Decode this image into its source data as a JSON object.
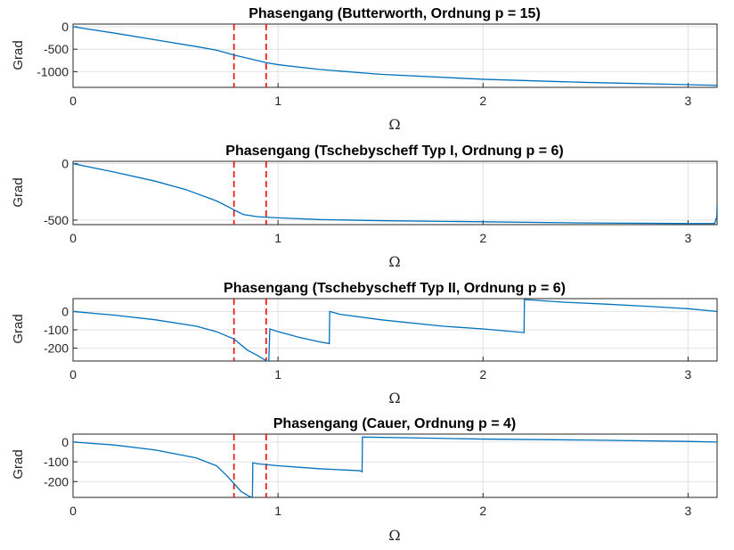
{
  "chart_data": [
    {
      "type": "line",
      "title": "Phasengang (Butterworth, Ordnung p = 15)",
      "xlabel": "Ω",
      "ylabel": "Grad",
      "xlim": [
        0,
        3.1416
      ],
      "ylim": [
        -1350,
        60
      ],
      "xticks": [
        0,
        1,
        2,
        3
      ],
      "xtick_labels": [
        "0",
        "1",
        "2",
        "3"
      ],
      "yticks": [
        0,
        -500,
        -1000
      ],
      "ytick_labels": [
        "0",
        "-500",
        "-1000"
      ],
      "grid": true,
      "line_color": "#0072BD",
      "markers": [
        0.785,
        0.942
      ],
      "marker_color": "#FF0000",
      "series": [
        {
          "x": [
            0,
            0.2,
            0.4,
            0.6,
            0.7,
            0.785,
            0.85,
            0.942,
            1.0,
            1.2,
            1.5,
            2.0,
            2.5,
            3.0,
            3.1416
          ],
          "y": [
            0,
            -140,
            -290,
            -440,
            -520,
            -630,
            -700,
            -800,
            -845,
            -950,
            -1060,
            -1170,
            -1240,
            -1290,
            -1305
          ]
        }
      ]
    },
    {
      "type": "line",
      "title": "Phasengang (Tschebyscheff Typ I, Ordnung p = 6)",
      "xlabel": "Ω",
      "ylabel": "Grad",
      "xlim": [
        0,
        3.1416
      ],
      "ylim": [
        -540,
        20
      ],
      "xticks": [
        0,
        1,
        2,
        3
      ],
      "xtick_labels": [
        "0",
        "1",
        "2",
        "3"
      ],
      "yticks": [
        0,
        -500
      ],
      "ytick_labels": [
        "0",
        "-500"
      ],
      "grid": true,
      "line_color": "#0072BD",
      "markers": [
        0.785,
        0.942
      ],
      "marker_color": "#FF0000",
      "series": [
        {
          "x": [
            0,
            0.2,
            0.4,
            0.55,
            0.7,
            0.76,
            0.785,
            0.83,
            0.9,
            1.0,
            1.2,
            1.5,
            2.0,
            2.5,
            3.0,
            3.13,
            3.14,
            3.1416
          ],
          "y": [
            0,
            -75,
            -155,
            -230,
            -330,
            -385,
            -410,
            -450,
            -470,
            -480,
            -495,
            -505,
            -515,
            -525,
            -530,
            -530,
            -470,
            -360
          ]
        }
      ]
    },
    {
      "type": "line",
      "title": "Phasengang (Tschebyscheff Typ II, Ordnung p = 6)",
      "xlabel": "Ω",
      "ylabel": "Grad",
      "xlim": [
        0,
        3.1416
      ],
      "ylim": [
        -270,
        70
      ],
      "xticks": [
        0,
        1,
        2,
        3
      ],
      "xtick_labels": [
        "0",
        "1",
        "2",
        "3"
      ],
      "yticks": [
        0,
        -100,
        -200
      ],
      "ytick_labels": [
        "0",
        "-100",
        "-200"
      ],
      "grid": true,
      "line_color": "#0072BD",
      "markers": [
        0.785,
        0.942
      ],
      "marker_color": "#FF0000",
      "series": [
        {
          "x": [
            0,
            0.2,
            0.4,
            0.6,
            0.7,
            0.785,
            0.85,
            0.9,
            0.945,
            0.955,
            0.96,
            1.0,
            1.1,
            1.2,
            1.25,
            1.252,
            1.3,
            1.5,
            1.8,
            2.0,
            2.2,
            2.202,
            2.4,
            2.6,
            2.8,
            3.0,
            3.1416
          ],
          "y": [
            0,
            -20,
            -45,
            -80,
            -110,
            -150,
            -210,
            -240,
            -270,
            -270,
            -95,
            -110,
            -140,
            -165,
            -175,
            0,
            -15,
            -45,
            -80,
            -95,
            -115,
            65,
            50,
            40,
            28,
            15,
            0
          ]
        }
      ]
    },
    {
      "type": "line",
      "title": "Phasengang (Cauer, Ordnung p = 4)",
      "xlabel": "Ω",
      "ylabel": "Grad",
      "xlim": [
        0,
        3.1416
      ],
      "ylim": [
        -280,
        40
      ],
      "xticks": [
        0,
        1,
        2,
        3
      ],
      "xtick_labels": [
        "0",
        "1",
        "2",
        "3"
      ],
      "yticks": [
        0,
        -100,
        -200
      ],
      "ytick_labels": [
        "0",
        "-100",
        "-200"
      ],
      "grid": true,
      "line_color": "#0072BD",
      "markers": [
        0.785,
        0.942
      ],
      "marker_color": "#FF0000",
      "series": [
        {
          "x": [
            0,
            0.2,
            0.4,
            0.6,
            0.7,
            0.75,
            0.785,
            0.82,
            0.86,
            0.875,
            0.877,
            0.9,
            1.0,
            1.2,
            1.4,
            1.41,
            1.412,
            1.6,
            2.0,
            2.5,
            3.0,
            3.1416
          ],
          "y": [
            0,
            -15,
            -40,
            -80,
            -120,
            -170,
            -210,
            -250,
            -275,
            -280,
            -105,
            -110,
            -120,
            -135,
            -145,
            -150,
            25,
            22,
            15,
            10,
            3,
            0
          ]
        }
      ]
    }
  ]
}
